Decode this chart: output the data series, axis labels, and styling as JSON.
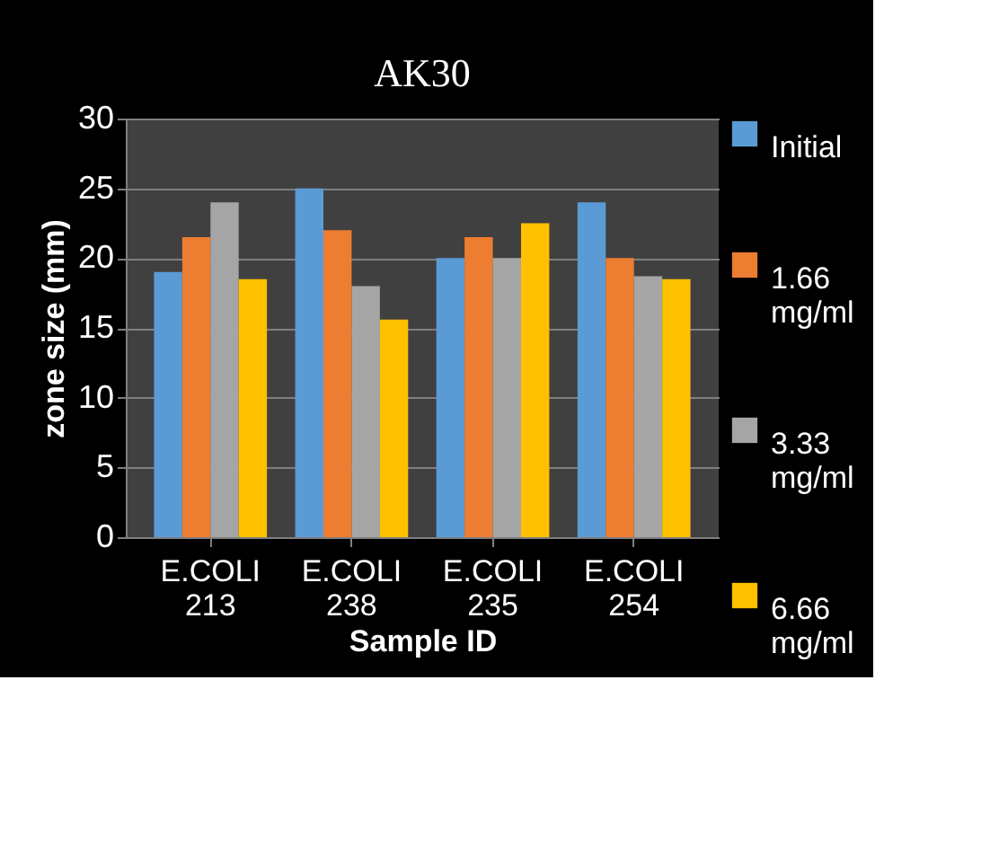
{
  "chart_data": {
    "type": "bar",
    "title": "AK30",
    "xlabel": "Sample ID",
    "ylabel": "zone size (mm)",
    "categories": [
      "E.COLI 213",
      "E.COLI 238",
      "E.COLI 235",
      "E.COLI 254"
    ],
    "series": [
      {
        "name": "Initial",
        "color": "#5b9bd5",
        "values": [
          19,
          25,
          20,
          24
        ]
      },
      {
        "name": "1.66 mg/ml",
        "color": "#ed7d31",
        "values": [
          21.5,
          22,
          21.5,
          20
        ]
      },
      {
        "name": "3.33 mg/ml",
        "color": "#a5a5a5",
        "values": [
          24,
          18,
          20,
          18.7
        ]
      },
      {
        "name": "6.66 mg/ml",
        "color": "#ffc000",
        "values": [
          18.5,
          15.6,
          22.5,
          18.5
        ]
      }
    ],
    "ylim": [
      0,
      30
    ],
    "yticks": [
      0,
      5,
      10,
      15,
      20,
      25,
      30
    ],
    "grid": "y",
    "legend": "right"
  }
}
